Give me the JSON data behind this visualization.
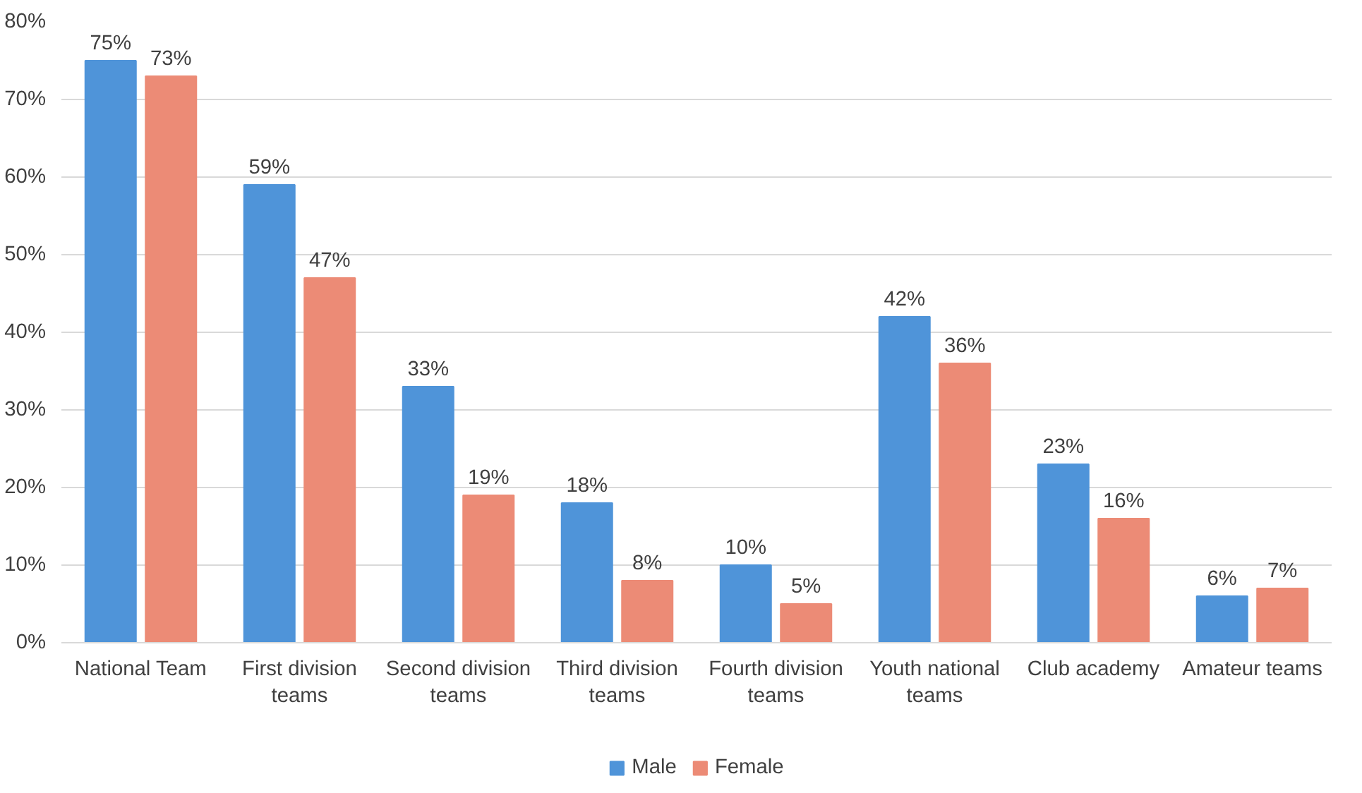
{
  "chart_data": {
    "type": "bar",
    "categories": [
      "National Team",
      "First division teams",
      "Second division teams",
      "Third division teams",
      "Fourth division teams",
      "Youth national teams",
      "Club academy",
      "Amateur teams"
    ],
    "series": [
      {
        "name": "Male",
        "color": "#4f94d9",
        "values": [
          75,
          59,
          33,
          18,
          10,
          42,
          23,
          6
        ],
        "value_labels": [
          "75%",
          "59%",
          "33%",
          "18%",
          "10%",
          "42%",
          "23%",
          "6%"
        ]
      },
      {
        "name": "Female",
        "color": "#ec8b76",
        "values": [
          73,
          47,
          19,
          8,
          5,
          36,
          16,
          7
        ],
        "value_labels": [
          "73%",
          "47%",
          "19%",
          "8%",
          "5%",
          "36%",
          "16%",
          "7%"
        ]
      }
    ],
    "ylim": [
      0,
      80
    ],
    "yticks": [
      {
        "value": 0,
        "label": "0%"
      },
      {
        "value": 10,
        "label": "10%"
      },
      {
        "value": 20,
        "label": "20%"
      },
      {
        "value": 30,
        "label": "30%"
      },
      {
        "value": 40,
        "label": "40%"
      },
      {
        "value": 50,
        "label": "50%"
      },
      {
        "value": 60,
        "label": "60%"
      },
      {
        "value": 70,
        "label": "70%"
      },
      {
        "value": 80,
        "label": "80%"
      }
    ],
    "grid": "y",
    "legend": "bottom"
  }
}
